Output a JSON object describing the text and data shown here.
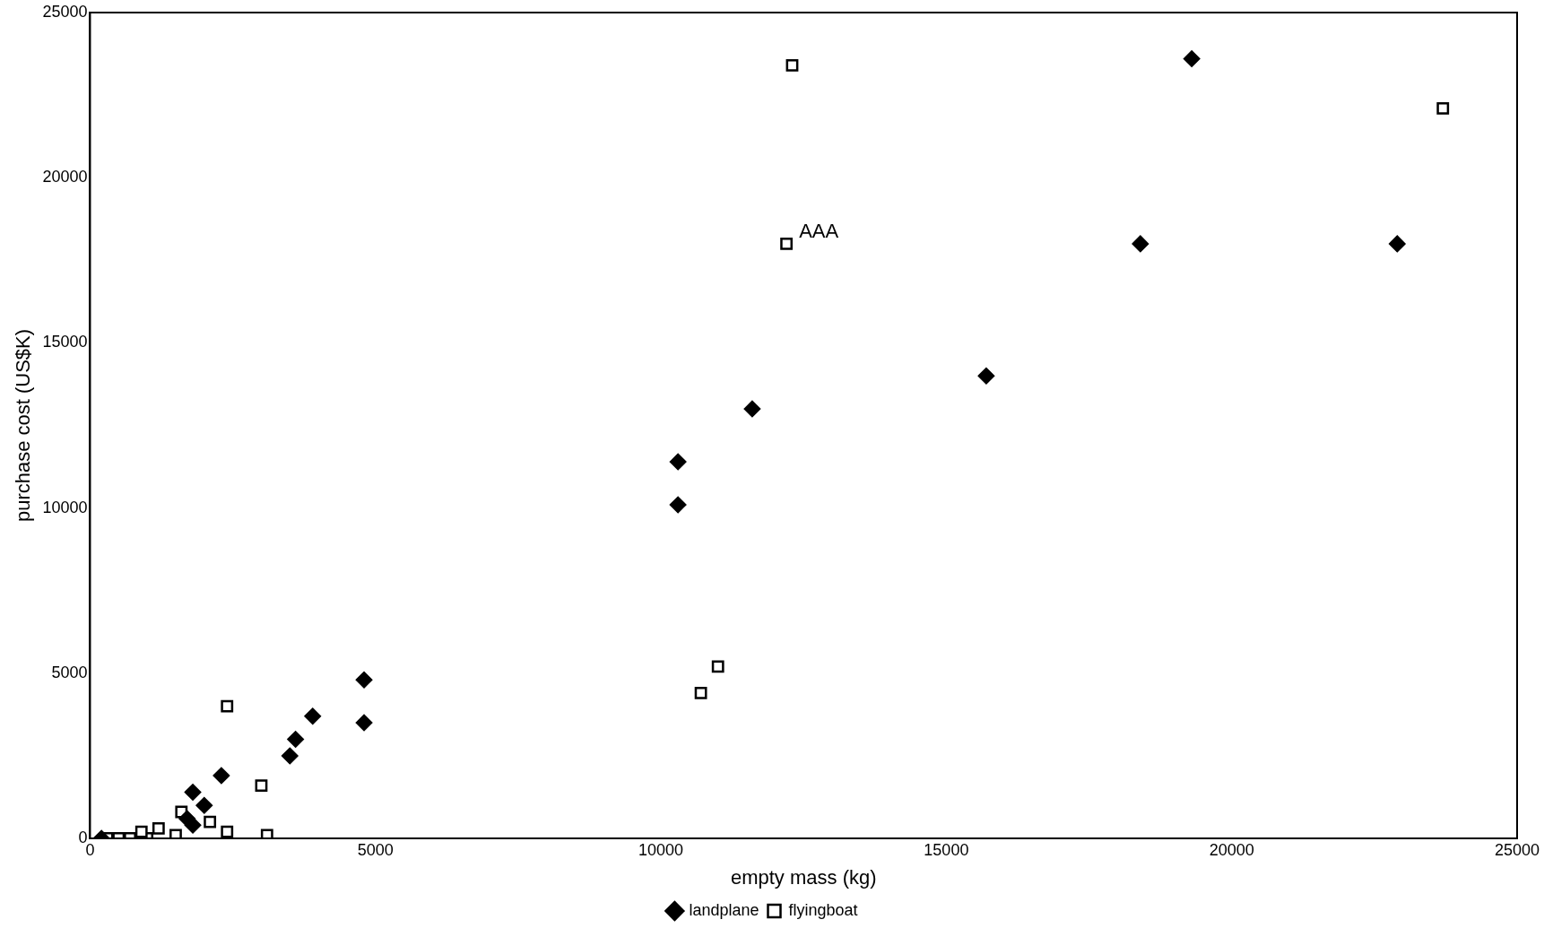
{
  "chart_data": {
    "type": "scatter",
    "xlabel": "empty mass (kg)",
    "ylabel": "purchase cost (US$K)",
    "xlim": [
      0,
      25000
    ],
    "xticks": [
      0,
      5000,
      10000,
      15000,
      20000,
      25000
    ],
    "ylim": [
      0,
      25000
    ],
    "yticks": [
      0,
      5000,
      10000,
      15000,
      20000,
      25000
    ],
    "grid": false,
    "legend": "bottom",
    "series": [
      {
        "name": "landplane",
        "color": "#000000",
        "marker": "diamond",
        "x": [
          19300,
          18400,
          22900,
          15700,
          11600,
          10300,
          10300,
          4800,
          4800,
          3900,
          3600,
          3500,
          2300,
          1800,
          2000,
          1700,
          1800,
          200
        ],
        "values": [
          23600,
          18000,
          18000,
          14000,
          13000,
          11400,
          10100,
          4800,
          3500,
          3700,
          3000,
          2500,
          1900,
          1400,
          1000,
          600,
          400,
          0
        ]
      },
      {
        "name": "flyingboat",
        "color": "#000000",
        "marker": "square",
        "x": [
          12300,
          12200,
          23700,
          11000,
          10700,
          2400,
          3000,
          1600,
          2100,
          2400,
          3100,
          1500,
          1200,
          1000,
          900,
          700,
          500,
          300
        ],
        "values": [
          23400,
          18000,
          22100,
          5200,
          4400,
          4000,
          1600,
          800,
          500,
          200,
          100,
          100,
          300,
          0,
          200,
          0,
          0,
          0
        ]
      }
    ],
    "annotations": [
      {
        "text": "AAA",
        "x": 12200,
        "y": 18000
      }
    ]
  }
}
